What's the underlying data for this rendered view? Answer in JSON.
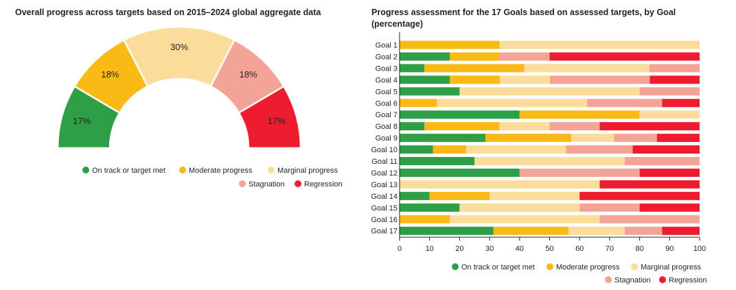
{
  "colors": {
    "on_track": "#2e9e47",
    "moderate": "#fbb916",
    "marginal": "#fcdc9a",
    "stagnation": "#f4a497",
    "regression": "#ed1c2f"
  },
  "chart_data": [
    {
      "type": "pie",
      "variant": "half-donut-gauge",
      "title": "Overall progress across targets based on 2015–2024 global aggregate data",
      "legend_placement": "bottom-right",
      "slices": [
        {
          "key": "on_track",
          "name": "On track or target met",
          "value": 17,
          "label": "17%"
        },
        {
          "key": "moderate",
          "name": "Moderate progress",
          "value": 18,
          "label": "18%"
        },
        {
          "key": "marginal",
          "name": "Marginal progress",
          "value": 30,
          "label": "30%"
        },
        {
          "key": "stagnation",
          "name": "Stagnation",
          "value": 18,
          "label": "18%"
        },
        {
          "key": "regression",
          "name": "Regression",
          "value": 17,
          "label": "17%"
        }
      ]
    },
    {
      "type": "bar",
      "orientation": "horizontal",
      "stacked": true,
      "title": "Progress assessment for the 17 Goals based on assessed targets, by Goal (percentage)",
      "legend_placement": "bottom-right",
      "xlim": [
        0,
        100
      ],
      "xticks": [
        0,
        10,
        20,
        30,
        40,
        50,
        60,
        70,
        80,
        90,
        100
      ],
      "grid": false,
      "categories": [
        "Goal 1",
        "Goal 2",
        "Goal 3",
        "Goal 4",
        "Goal 5",
        "Goal 6",
        "Goal 7",
        "Goal 8",
        "Goal 9",
        "Goal 10",
        "Goal 11",
        "Goal 12",
        "Goal 13",
        "Goal 14",
        "Goal 15",
        "Goal 16",
        "Goal 17"
      ],
      "series": [
        {
          "key": "on_track",
          "name": "On track or target met",
          "values": [
            0,
            16.7,
            8.3,
            16.7,
            20,
            0,
            40,
            8.3,
            28.6,
            11.1,
            25,
            40,
            0,
            10,
            20,
            0,
            31.3
          ]
        },
        {
          "key": "moderate",
          "name": "Moderate progress",
          "values": [
            33.3,
            16.7,
            33.3,
            16.7,
            0,
            12.5,
            40,
            25,
            28.6,
            11.1,
            0,
            0,
            0,
            20,
            0,
            16.7,
            25
          ]
        },
        {
          "key": "marginal",
          "name": "Marginal progress",
          "values": [
            66.7,
            0,
            41.7,
            16.7,
            60,
            50,
            20,
            16.7,
            14.3,
            33.3,
            50,
            0,
            66.7,
            30,
            40,
            50,
            18.7
          ]
        },
        {
          "key": "stagnation",
          "name": "Stagnation",
          "values": [
            0,
            16.6,
            16.7,
            33.3,
            20,
            25,
            0,
            16.7,
            14.3,
            22.2,
            25,
            40,
            0,
            0,
            20,
            33.3,
            12.5
          ]
        },
        {
          "key": "regression",
          "name": "Regression",
          "values": [
            0,
            50,
            0,
            16.6,
            0,
            12.5,
            0,
            33.3,
            14.2,
            22.3,
            0,
            20,
            33.3,
            40,
            20,
            0,
            12.5
          ]
        }
      ]
    }
  ]
}
